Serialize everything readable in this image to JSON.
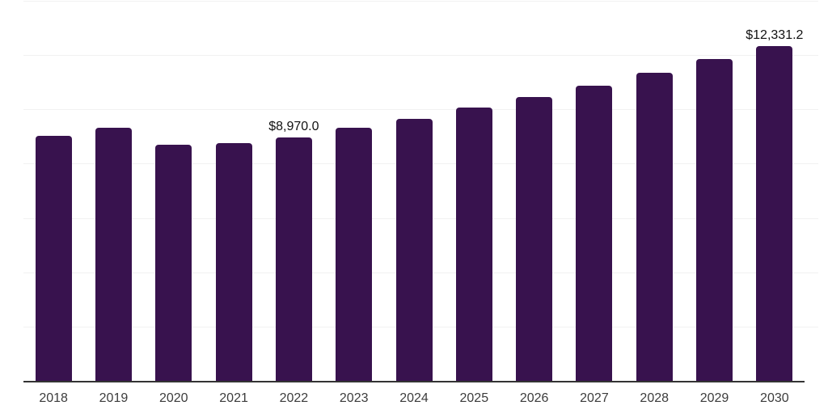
{
  "chart_data": {
    "type": "bar",
    "title": "",
    "xlabel": "",
    "ylabel": "",
    "categories": [
      "2018",
      "2019",
      "2020",
      "2021",
      "2022",
      "2023",
      "2024",
      "2025",
      "2026",
      "2027",
      "2028",
      "2029",
      "2030"
    ],
    "values": [
      9020,
      9330,
      8700,
      8760,
      8970.0,
      9330,
      9660,
      10060,
      10460,
      10860,
      11350,
      11860,
      12331.2
    ],
    "data_labels": [
      "",
      "",
      "",
      "",
      "$8,970.0",
      "",
      "",
      "",
      "",
      "",
      "",
      "",
      "$12,331.2"
    ],
    "ylim": [
      0,
      14000
    ],
    "gridline_step": 2000,
    "grid": true,
    "legend": false,
    "y_tick_labels_visible": false,
    "colors": {
      "bar": "#38124E",
      "gridline": "#f1f1f1",
      "axis_line": "#333333",
      "value_label_text": "#111111",
      "tick_label_text": "#3c3c3c",
      "background": "#ffffff"
    }
  }
}
